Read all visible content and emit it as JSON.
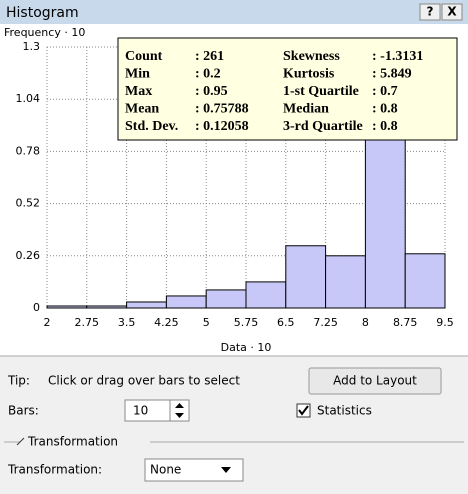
{
  "window": {
    "title": "Histogram",
    "help_button": "?",
    "close_button": "X"
  },
  "chart_data": {
    "type": "histogram",
    "y_label": "Frequency · 10",
    "x_label": "Data · 10",
    "bins": [
      2,
      2.75,
      3.5,
      4.25,
      5,
      5.75,
      6.5,
      7.25,
      8,
      8.75,
      9.5
    ],
    "values": [
      0.01,
      0.01,
      0.03,
      0.06,
      0.09,
      0.13,
      0.31,
      0.26,
      1.16,
      0.27
    ],
    "color": "#c8c8f8",
    "xlim": [
      2,
      9.5
    ],
    "xticks": [
      2,
      2.75,
      3.5,
      4.25,
      5,
      5.75,
      6.5,
      7.25,
      8,
      8.75,
      9.5
    ],
    "ylim": [
      0,
      1.3
    ],
    "yticks": [
      0,
      0.26,
      0.52,
      0.78,
      1.04,
      1.3
    ],
    "grid": true
  },
  "statistics": {
    "rows": [
      [
        "Count",
        ": 261",
        "Skewness",
        ": -1.3131"
      ],
      [
        "Min",
        ": 0.2",
        "Kurtosis",
        ": 5.849"
      ],
      [
        "Max",
        ": 0.95",
        "1-st Quartile",
        ": 0.7"
      ],
      [
        "Mean",
        ": 0.75788",
        "Median",
        ": 0.8"
      ],
      [
        "Std. Dev.",
        ": 0.12058",
        "3-rd Quartile",
        ": 0.8"
      ]
    ]
  },
  "controls": {
    "tip_label": "Tip:",
    "tip_text": "Click or drag over bars to select",
    "add_button": "Add to Layout",
    "bars_label": "Bars:",
    "bars_value": "10",
    "statistics_checkbox": "Statistics",
    "group_title": "Transformation",
    "transformation_label": "Transformation:",
    "transformation_value": "None"
  }
}
